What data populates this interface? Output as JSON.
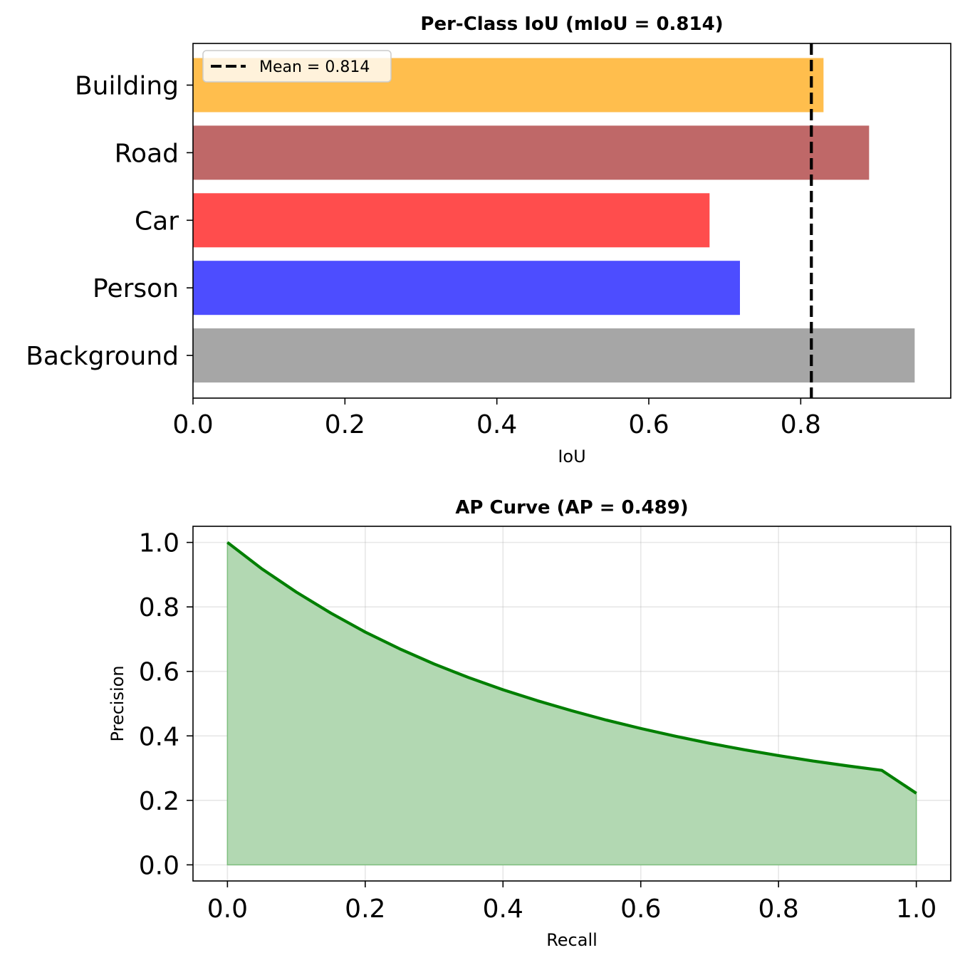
{
  "chart_data": [
    {
      "type": "bar",
      "orientation": "horizontal",
      "title": "Per-Class IoU (mIoU = 0.814)",
      "xlabel": "IoU",
      "ylabel": "",
      "categories": [
        "Building",
        "Road",
        "Car",
        "Person",
        "Background"
      ],
      "values": [
        0.83,
        0.89,
        0.68,
        0.72,
        0.95
      ],
      "colors": [
        "#ffbe4d",
        "#bf6868",
        "#ff4d4d",
        "#4d4dff",
        "#a6a6a6"
      ],
      "xlim": [
        0,
        0.9975
      ],
      "xticks": [
        0.0,
        0.2,
        0.4,
        0.6,
        0.8
      ],
      "xtick_labels": [
        "0.0",
        "0.2",
        "0.4",
        "0.6",
        "0.8"
      ],
      "mean_line": {
        "value": 0.814,
        "label": "Mean = 0.814",
        "color": "#000000",
        "style": "dashed"
      },
      "legend": "top-left",
      "grid": false
    },
    {
      "type": "area",
      "title": "AP Curve (AP = 0.489)",
      "xlabel": "Recall",
      "ylabel": "Precision",
      "line_color": "#007f00",
      "fill_color": "#b2d8b2",
      "x": [
        0.0,
        0.05,
        0.1,
        0.15,
        0.2,
        0.25,
        0.3,
        0.35,
        0.4,
        0.45,
        0.5,
        0.55,
        0.6,
        0.65,
        0.7,
        0.75,
        0.8,
        0.85,
        0.9,
        0.95,
        1.0
      ],
      "y": [
        1.0,
        0.918,
        0.846,
        0.781,
        0.722,
        0.67,
        0.623,
        0.581,
        0.543,
        0.509,
        0.478,
        0.449,
        0.423,
        0.399,
        0.377,
        0.357,
        0.339,
        0.322,
        0.307,
        0.293,
        0.222
      ],
      "xlim": [
        -0.05,
        1.05
      ],
      "ylim": [
        -0.05,
        1.05
      ],
      "xticks": [
        0.0,
        0.2,
        0.4,
        0.6,
        0.8,
        1.0
      ],
      "xtick_labels": [
        "0.0",
        "0.2",
        "0.4",
        "0.6",
        "0.8",
        "1.0"
      ],
      "yticks": [
        0.0,
        0.2,
        0.4,
        0.6,
        0.8,
        1.0
      ],
      "ytick_labels": [
        "0.0",
        "0.2",
        "0.4",
        "0.6",
        "0.8",
        "1.0"
      ],
      "grid": true
    }
  ]
}
